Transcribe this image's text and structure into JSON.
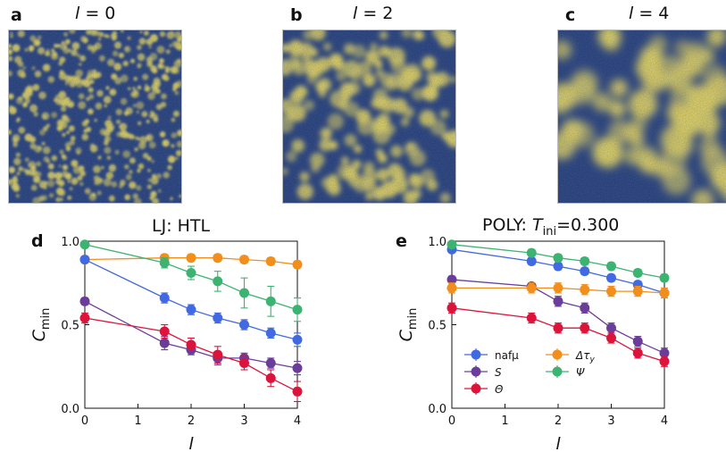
{
  "panels": {
    "a": {
      "letter": "a",
      "title_var": "l",
      "title_eq": " = 0"
    },
    "b": {
      "letter": "b",
      "title_var": "l",
      "title_eq": " = 2"
    },
    "c": {
      "letter": "c",
      "title_var": "l",
      "title_eq": " = 4"
    },
    "d": {
      "letter": "d",
      "title": "LJ: HTL"
    },
    "e": {
      "letter": "e",
      "title_main": "POLY: ",
      "title_T": "T",
      "title_sub": "ini",
      "title_val": "=0.300"
    }
  },
  "colors": {
    "blue": "#4169e1",
    "purple": "#6a3d9a",
    "red": "#dc143c",
    "orange": "#f28e1c",
    "green": "#3cb371",
    "snapshot_dark": "#1d3770",
    "snapshot_light": "#f5e050"
  },
  "chart_data": [
    {
      "type": "line",
      "panel": "d",
      "title": "LJ: HTL",
      "xlabel": "l",
      "ylabel": "C_min",
      "xlim": [
        0,
        4
      ],
      "ylim": [
        0.0,
        1.0
      ],
      "xticks": [
        "0",
        "1",
        "2",
        "3",
        "4"
      ],
      "yticks": [
        "0.0",
        "0.5",
        "1.0"
      ],
      "grid": false,
      "legend": "none",
      "series": [
        {
          "color": "#f28e1c",
          "x": [
            0,
            1.5,
            2,
            2.5,
            3,
            3.5,
            4
          ],
          "y": [
            0.89,
            0.9,
            0.9,
            0.9,
            0.89,
            0.88,
            0.86
          ],
          "err": [
            0.02,
            0.02,
            0.02,
            0.02,
            0.02,
            0.02,
            0.02
          ]
        },
        {
          "color": "#3cb371",
          "x": [
            0,
            1.5,
            2,
            2.5,
            3,
            3.5,
            4
          ],
          "y": [
            0.98,
            0.87,
            0.81,
            0.76,
            0.69,
            0.64,
            0.59
          ],
          "err": [
            0.01,
            0.03,
            0.04,
            0.06,
            0.09,
            0.09,
            0.07
          ]
        },
        {
          "color": "#4169e1",
          "x": [
            0,
            1.5,
            2,
            2.5,
            3,
            3.5,
            4
          ],
          "y": [
            0.89,
            0.66,
            0.59,
            0.54,
            0.5,
            0.45,
            0.41
          ],
          "err": [
            0.01,
            0.03,
            0.03,
            0.03,
            0.03,
            0.03,
            0.04
          ]
        },
        {
          "color": "#6a3d9a",
          "x": [
            0,
            1.5,
            2,
            2.5,
            3,
            3.5,
            4
          ],
          "y": [
            0.64,
            0.39,
            0.35,
            0.3,
            0.3,
            0.27,
            0.24
          ],
          "err": [
            0.02,
            0.04,
            0.03,
            0.04,
            0.03,
            0.03,
            0.04
          ]
        },
        {
          "color": "#dc143c",
          "x": [
            0,
            1.5,
            2,
            2.5,
            3,
            3.5,
            4
          ],
          "y": [
            0.54,
            0.46,
            0.38,
            0.32,
            0.27,
            0.18,
            0.1
          ],
          "err": [
            0.03,
            0.04,
            0.04,
            0.05,
            0.04,
            0.05,
            0.06
          ]
        }
      ]
    },
    {
      "type": "line",
      "panel": "e",
      "title": "POLY: T_ini=0.300",
      "xlabel": "l",
      "ylabel": "C_min",
      "xlim": [
        0,
        4
      ],
      "ylim": [
        0.0,
        1.0
      ],
      "xticks": [
        "0",
        "1",
        "2",
        "3",
        "4"
      ],
      "yticks": [
        "0.0",
        "0.5",
        "1.0"
      ],
      "grid": false,
      "legend": "lower-left",
      "series": [
        {
          "name": "nafμ",
          "color": "#4169e1",
          "x": [
            0,
            1.5,
            2,
            2.5,
            3,
            3.5,
            4
          ],
          "y": [
            0.95,
            0.88,
            0.85,
            0.82,
            0.78,
            0.74,
            0.69
          ],
          "err": [
            0.01,
            0.02,
            0.02,
            0.02,
            0.02,
            0.02,
            0.02
          ]
        },
        {
          "name": "S",
          "color": "#6a3d9a",
          "x": [
            0,
            1.5,
            2,
            2.5,
            3,
            3.5,
            4
          ],
          "y": [
            0.77,
            0.73,
            0.64,
            0.6,
            0.48,
            0.4,
            0.33
          ],
          "err": [
            0.02,
            0.02,
            0.03,
            0.03,
            0.03,
            0.03,
            0.03
          ]
        },
        {
          "name": "Θ",
          "color": "#dc143c",
          "x": [
            0,
            1.5,
            2,
            2.5,
            3,
            3.5,
            4
          ],
          "y": [
            0.6,
            0.54,
            0.48,
            0.48,
            0.42,
            0.33,
            0.28
          ],
          "err": [
            0.03,
            0.03,
            0.03,
            0.03,
            0.03,
            0.03,
            0.03
          ]
        },
        {
          "name": "Δτ_y",
          "color": "#f28e1c",
          "x": [
            0,
            1.5,
            2,
            2.5,
            3,
            3.5,
            4
          ],
          "y": [
            0.72,
            0.72,
            0.72,
            0.71,
            0.7,
            0.7,
            0.69
          ],
          "err": [
            0.03,
            0.03,
            0.03,
            0.03,
            0.03,
            0.03,
            0.03
          ]
        },
        {
          "name": "Ψ",
          "color": "#3cb371",
          "x": [
            0,
            1.5,
            2,
            2.5,
            3,
            3.5,
            4
          ],
          "y": [
            0.98,
            0.93,
            0.9,
            0.88,
            0.85,
            0.81,
            0.78
          ],
          "err": [
            0.01,
            0.02,
            0.02,
            0.02,
            0.02,
            0.02,
            0.02
          ]
        }
      ]
    }
  ]
}
